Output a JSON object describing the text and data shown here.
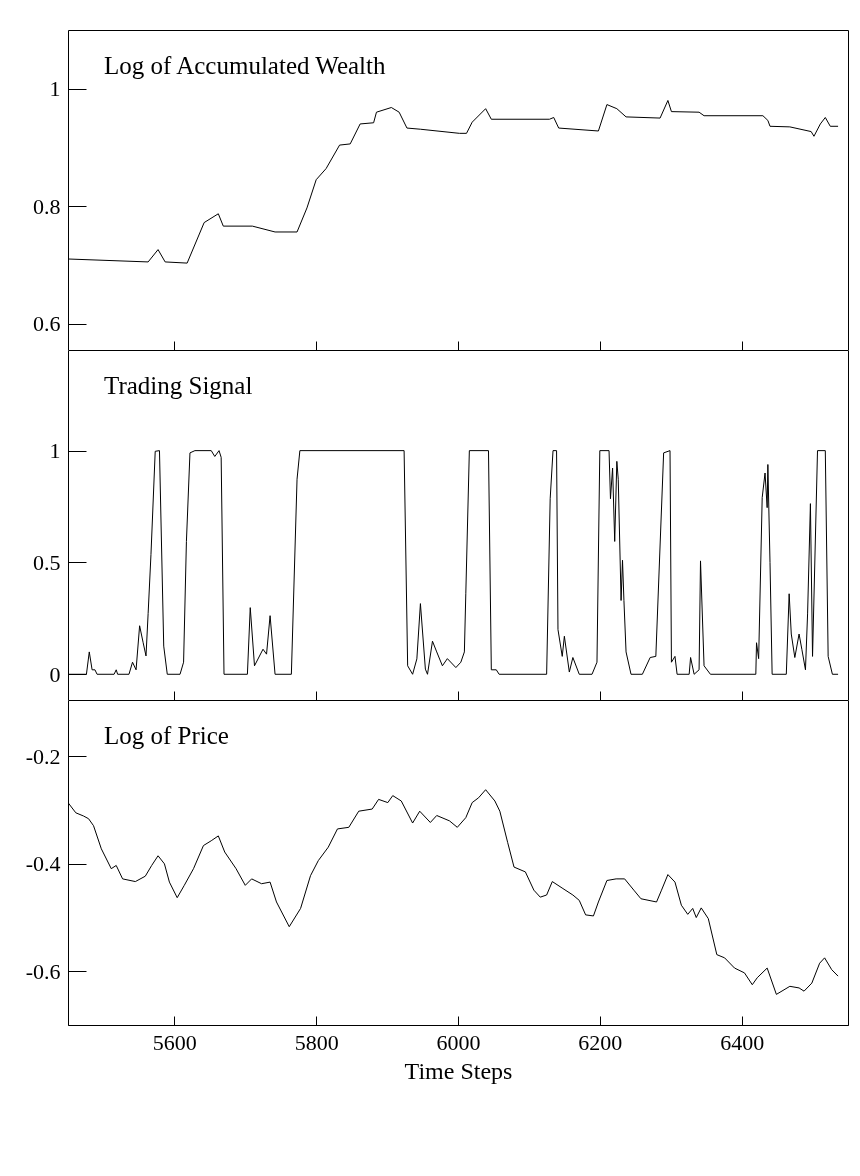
{
  "chart_data": [
    {
      "type": "line",
      "title": "Log of Accumulated Wealth",
      "grid": false,
      "tick_labels": "y",
      "xlim": [
        5450,
        6550
      ],
      "xticks": [
        5600,
        5800,
        6000,
        6200,
        6400
      ],
      "ylim": [
        0.555,
        1.1
      ],
      "yticks": [
        0.6,
        0.8,
        1
      ],
      "x": [
        5450,
        5563,
        5577,
        5587,
        5618,
        5642,
        5662,
        5669,
        5710,
        5742,
        5773,
        5787,
        5800,
        5814,
        5833,
        5848,
        5862,
        5881,
        5885,
        5906,
        5917,
        5928,
        5947,
        6002,
        6012,
        6020,
        6039,
        6047,
        6129,
        6135,
        6142,
        6198,
        6210,
        6224,
        6237,
        6285,
        6296,
        6301,
        6340,
        6347,
        6430,
        6437,
        6440,
        6468,
        6498,
        6502,
        6511,
        6518,
        6525,
        6536
      ],
      "series": [
        {
          "color": "#000000",
          "values": [
            0.71,
            0.705,
            0.726,
            0.705,
            0.703,
            0.772,
            0.787,
            0.766,
            0.766,
            0.756,
            0.756,
            0.797,
            0.845,
            0.864,
            0.904,
            0.906,
            0.94,
            0.942,
            0.96,
            0.968,
            0.96,
            0.933,
            0.931,
            0.924,
            0.924,
            0.943,
            0.966,
            0.948,
            0.948,
            0.951,
            0.933,
            0.928,
            0.973,
            0.966,
            0.952,
            0.95,
            0.98,
            0.961,
            0.96,
            0.954,
            0.954,
            0.946,
            0.936,
            0.935,
            0.927,
            0.919,
            0.94,
            0.951,
            0.936,
            0.936
          ]
        }
      ]
    },
    {
      "type": "line",
      "title": "Trading Signal",
      "grid": false,
      "tick_labels": "y",
      "xlim": [
        5450,
        6550
      ],
      "xticks": [
        5600,
        5800,
        6000,
        6200,
        6400
      ],
      "ylim": [
        -0.115,
        1.45
      ],
      "yticks": [
        0,
        0.5,
        1
      ],
      "x": [
        5450,
        5476,
        5480,
        5484,
        5488,
        5491,
        5515,
        5518,
        5520,
        5536,
        5541,
        5546,
        5551,
        5556,
        5560,
        5563,
        5567,
        5573,
        5579,
        5585,
        5590,
        5608,
        5613,
        5617,
        5622,
        5629,
        5652,
        5657,
        5663,
        5666,
        5670,
        5703,
        5707,
        5713,
        5725,
        5730,
        5735,
        5742,
        5765,
        5773,
        5777,
        5924,
        5929,
        5936,
        5942,
        5947,
        5954,
        5957,
        5964,
        5970,
        5978,
        5985,
        5997,
        6004,
        6009,
        6011,
        6016,
        6043,
        6047,
        6054,
        6058,
        6125,
        6130,
        6134,
        6139,
        6141,
        6147,
        6150,
        6157,
        6162,
        6171,
        6189,
        6196,
        6200,
        6213,
        6215,
        6218,
        6221,
        6224,
        6226,
        6230,
        6232,
        6234,
        6237,
        6244,
        6260,
        6271,
        6279,
        6290,
        6299,
        6301,
        6306,
        6309,
        6326,
        6328,
        6333,
        6340,
        6342,
        6347,
        6356,
        6420,
        6421,
        6424,
        6429,
        6433,
        6436,
        6437,
        6440,
        6443,
        6463,
        6467,
        6470,
        6475,
        6481,
        6485,
        6490,
        6493,
        6497,
        6500,
        6507,
        6518,
        6522,
        6528,
        6536
      ],
      "series": [
        {
          "color": "#000000",
          "values": [
            0,
            0,
            0.1,
            0.02,
            0.02,
            0,
            0,
            0.02,
            0,
            0,
            0.054,
            0.02,
            0.217,
            0.141,
            0.082,
            0.272,
            0.535,
            0.997,
            1,
            0.126,
            0,
            0,
            0.054,
            0.594,
            0.99,
            1,
            1,
            0.974,
            1,
            0.97,
            0,
            0,
            0.298,
            0.038,
            0.112,
            0.09,
            0.262,
            0,
            0,
            0.872,
            1,
            1,
            0.038,
            0,
            0.069,
            0.316,
            0.023,
            0,
            0.148,
            0.1,
            0.038,
            0.07,
            0.03,
            0.054,
            0.1,
            0.36,
            1,
            1,
            0.02,
            0.02,
            0,
            0,
            0.785,
            1,
            1,
            0.2,
            0.08,
            0.17,
            0.01,
            0.075,
            0,
            0,
            0.054,
            1,
            1,
            0.785,
            0.922,
            0.594,
            0.952,
            0.872,
            0.33,
            0.51,
            0.33,
            0.1,
            0,
            0,
            0.075,
            0.08,
            0.99,
            1,
            0.054,
            0.08,
            0,
            0,
            0.075,
            0,
            0.02,
            0.507,
            0.038,
            0,
            0,
            0.141,
            0.07,
            0.79,
            0.9,
            0.745,
            0.938,
            0.5,
            0,
            0,
            0.36,
            0.18,
            0.075,
            0.18,
            0.11,
            0.02,
            0.27,
            0.763,
            0.08,
            1,
            1,
            0.08,
            0,
            0
          ]
        }
      ]
    },
    {
      "type": "line",
      "title": "Log of Price",
      "xlabel": "Time Steps",
      "grid": false,
      "xlim": [
        5450,
        6550
      ],
      "xticks": [
        5600,
        5800,
        6000,
        6200,
        6400
      ],
      "ylim": [
        -0.7,
        -0.095
      ],
      "yticks": [
        -0.6,
        -0.4,
        -0.2
      ],
      "x": [
        5450,
        5461,
        5472,
        5479,
        5486,
        5497,
        5511,
        5518,
        5527,
        5545,
        5559,
        5568,
        5577,
        5586,
        5593,
        5604,
        5614,
        5627,
        5641,
        5652,
        5662,
        5671,
        5687,
        5700,
        5709,
        5723,
        5735,
        5744,
        5762,
        5778,
        5792,
        5803,
        5817,
        5830,
        5846,
        5860,
        5879,
        5888,
        5901,
        5908,
        5920,
        5936,
        5946,
        5961,
        5970,
        5988,
        5999,
        6011,
        6020,
        6029,
        6039,
        6052,
        6059,
        6070,
        6079,
        6095,
        6107,
        6116,
        6125,
        6133,
        6148,
        6162,
        6171,
        6180,
        6191,
        6198,
        6210,
        6223,
        6235,
        6248,
        6258,
        6280,
        6287,
        6296,
        6306,
        6315,
        6324,
        6331,
        6336,
        6343,
        6353,
        6365,
        6376,
        6390,
        6404,
        6415,
        6422,
        6436,
        6449,
        6468,
        6481,
        6488,
        6499,
        6510,
        6517,
        6527,
        6536
      ],
      "series": [
        {
          "color": "#000000",
          "values": [
            -0.286,
            -0.305,
            -0.311,
            -0.316,
            -0.329,
            -0.372,
            -0.409,
            -0.403,
            -0.428,
            -0.433,
            -0.423,
            -0.403,
            -0.385,
            -0.4,
            -0.434,
            -0.463,
            -0.44,
            -0.409,
            -0.366,
            -0.357,
            -0.348,
            -0.378,
            -0.409,
            -0.44,
            -0.428,
            -0.437,
            -0.434,
            -0.471,
            -0.517,
            -0.483,
            -0.422,
            -0.394,
            -0.369,
            -0.335,
            -0.332,
            -0.302,
            -0.298,
            -0.28,
            -0.286,
            -0.273,
            -0.283,
            -0.324,
            -0.302,
            -0.323,
            -0.31,
            -0.32,
            -0.332,
            -0.314,
            -0.286,
            -0.277,
            -0.262,
            -0.283,
            -0.302,
            -0.36,
            -0.406,
            -0.415,
            -0.449,
            -0.462,
            -0.458,
            -0.433,
            -0.446,
            -0.458,
            -0.468,
            -0.495,
            -0.497,
            -0.471,
            -0.431,
            -0.428,
            -0.428,
            -0.449,
            -0.465,
            -0.471,
            -0.449,
            -0.42,
            -0.434,
            -0.477,
            -0.494,
            -0.483,
            -0.5,
            -0.482,
            -0.502,
            -0.569,
            -0.575,
            -0.594,
            -0.603,
            -0.625,
            -0.612,
            -0.594,
            -0.643,
            -0.628,
            -0.631,
            -0.637,
            -0.622,
            -0.585,
            -0.575,
            -0.597,
            -0.609
          ]
        }
      ]
    }
  ]
}
